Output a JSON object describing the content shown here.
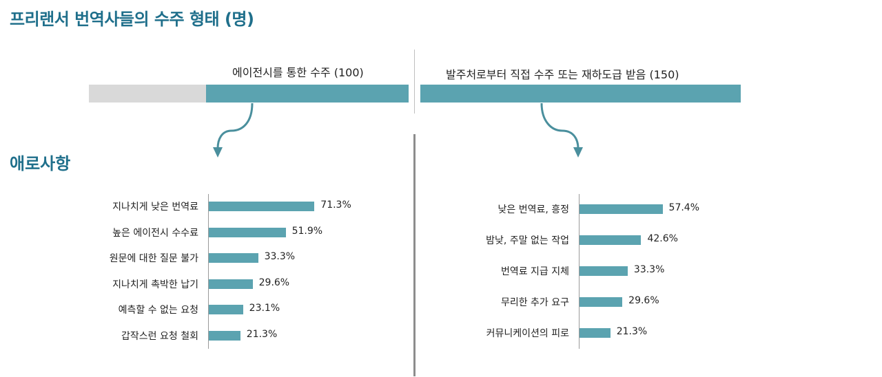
{
  "title": "프리랜서 번역사들의 수주 형태 (명)",
  "subtitle": "애로사항",
  "colors": {
    "accent": "#5ba3b0",
    "muted": "#d9d9d9",
    "heading": "#1f6f8b"
  },
  "top": {
    "agency_label": "에이전시를 통한 수주 (100)",
    "direct_label": "발주처로부터 직접 수주 또는 재하도급 받음 (150)"
  },
  "chart_data": [
    {
      "type": "bar",
      "orientation": "horizontal",
      "categories": [
        "지나치게 낮은 번역료",
        "높은 에이전시 수수료",
        "원문에 대한 질문 불가",
        "지나치게 촉박한 납기",
        "예측할 수 없는 요청",
        "갑작스런 요청 철회"
      ],
      "values": [
        71.3,
        51.9,
        33.3,
        29.6,
        23.1,
        21.3
      ],
      "labels": [
        "71.3%",
        "51.9%",
        "33.3%",
        "29.6%",
        "23.1%",
        "21.3%"
      ]
    },
    {
      "type": "bar",
      "orientation": "horizontal",
      "categories": [
        "낮은 번역료, 흥정",
        "밤낮, 주말 없는 작업",
        "번역료 지급 지체",
        "무리한 추가 요구",
        "커뮤니케이션의 피로"
      ],
      "values": [
        57.4,
        42.6,
        33.3,
        29.6,
        21.3
      ],
      "labels": [
        "57.4%",
        "42.6%",
        "33.3%",
        "29.6%",
        "21.3%"
      ]
    },
    {
      "type": "bar",
      "orientation": "horizontal",
      "categories": [
        "에이전시를 통한 수주",
        "발주처로부터 직접 수주 또는 재하도급 받음"
      ],
      "values": [
        100,
        150
      ],
      "labels": [
        "에이전시를 통한 수주 (100)",
        "발주처로부터 직접 수주 또는 재하도급 받음 (150)"
      ]
    }
  ]
}
